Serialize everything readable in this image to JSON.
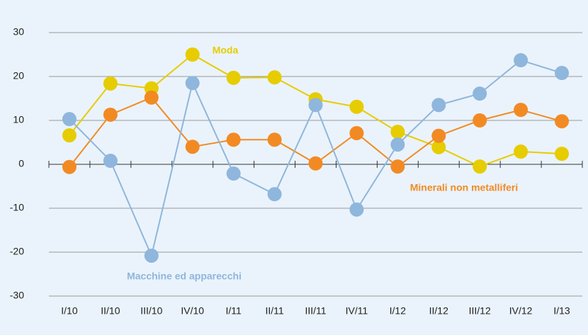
{
  "chart_data": {
    "type": "line",
    "categories": [
      "I/10",
      "II/10",
      "III/10",
      "IV/10",
      "I/11",
      "II/11",
      "III/11",
      "IV/11",
      "I/12",
      "II/12",
      "III/12",
      "IV/12",
      "I/13"
    ],
    "series": [
      {
        "name": "Moda",
        "color": "#e6cc00",
        "values": [
          6.6,
          18.4,
          17.3,
          25.0,
          19.7,
          19.8,
          14.8,
          13.1,
          7.4,
          3.9,
          -0.5,
          2.9,
          2.4
        ]
      },
      {
        "name": "Minerali non metalliferi",
        "color": "#f28a24",
        "values": [
          -0.6,
          11.3,
          15.2,
          4.0,
          5.6,
          5.6,
          0.2,
          7.1,
          -0.5,
          6.5,
          10.0,
          12.4,
          9.8
        ]
      },
      {
        "name": "Macchine ed apparecchi",
        "color": "#8fb6dc",
        "values": [
          10.3,
          0.8,
          -20.8,
          18.5,
          -2.1,
          -6.8,
          13.5,
          -10.3,
          4.5,
          13.5,
          16.1,
          23.7,
          20.8
        ]
      }
    ],
    "ylim": [
      -30,
      30
    ],
    "yticks": [
      -30,
      -20,
      -10,
      0,
      10,
      20,
      30
    ],
    "grid": true
  }
}
